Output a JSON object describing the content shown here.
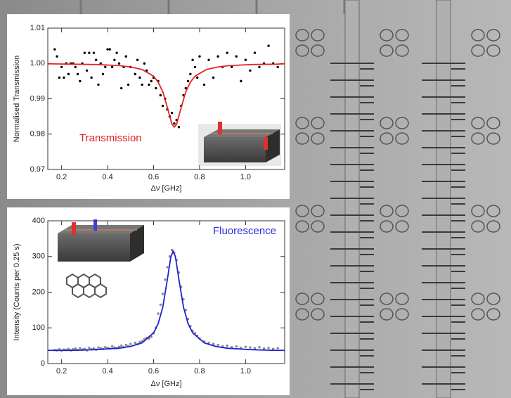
{
  "chart_data": [
    {
      "type": "scatter",
      "annotation": "Transmission",
      "annotation_color": "#e02020",
      "xlabel": "Δν [GHz]",
      "ylabel": "Normalised Transmission",
      "xlim": [
        0.14,
        1.17
      ],
      "ylim": [
        0.97,
        1.01
      ],
      "xticks": [
        0.2,
        0.4,
        0.6,
        0.8,
        {
          "value": 1,
          "label": "1.0"
        }
      ],
      "yticks": [
        0.97,
        0.98,
        0.99,
        {
          "value": 1,
          "label": "1.00"
        },
        1.01
      ],
      "points": {
        "color": "#000000",
        "x": [
          0.17,
          0.18,
          0.19,
          0.2,
          0.21,
          0.22,
          0.23,
          0.24,
          0.25,
          0.26,
          0.27,
          0.28,
          0.29,
          0.3,
          0.31,
          0.32,
          0.33,
          0.34,
          0.35,
          0.36,
          0.37,
          0.38,
          0.39,
          0.4,
          0.41,
          0.42,
          0.43,
          0.44,
          0.45,
          0.46,
          0.47,
          0.48,
          0.49,
          0.5,
          0.52,
          0.53,
          0.54,
          0.55,
          0.56,
          0.57,
          0.58,
          0.59,
          0.6,
          0.61,
          0.62,
          0.63,
          0.64,
          0.65,
          0.66,
          0.67,
          0.68,
          0.69,
          0.7,
          0.71,
          0.72,
          0.73,
          0.74,
          0.75,
          0.76,
          0.77,
          0.78,
          0.79,
          0.8,
          0.82,
          0.84,
          0.86,
          0.88,
          0.9,
          0.92,
          0.94,
          0.96,
          0.98,
          1.0,
          1.02,
          1.04,
          1.06,
          1.08,
          1.1,
          1.12,
          1.14
        ],
        "values": [
          1.004,
          1.002,
          0.996,
          0.999,
          0.996,
          1.0,
          0.997,
          1.0,
          1.0,
          0.999,
          0.997,
          0.995,
          1.0,
          1.003,
          0.998,
          1.003,
          0.996,
          1.003,
          1.001,
          0.994,
          1.0,
          0.997,
          0.999,
          1.004,
          1.004,
          0.999,
          1.001,
          1.003,
          1.0,
          0.993,
          0.999,
          1.002,
          0.994,
          0.999,
          0.997,
          1.001,
          0.996,
          0.994,
          1.0,
          0.998,
          0.994,
          0.995,
          0.996,
          0.993,
          0.995,
          0.991,
          0.988,
          0.99,
          0.987,
          0.985,
          0.986,
          0.983,
          0.984,
          0.982,
          0.988,
          0.991,
          0.993,
          0.995,
          0.997,
          1.001,
          0.999,
          0.996,
          1.002,
          0.994,
          1.001,
          0.996,
          1.002,
          0.999,
          1.003,
          0.999,
          1.002,
          0.995,
          1.001,
          0.998,
          1.003,
          0.999,
          1.0,
          1.005,
          1.0,
          0.999
        ]
      },
      "fit": {
        "color": "#e82020",
        "x": [
          0.14,
          0.25,
          0.35,
          0.45,
          0.5,
          0.55,
          0.6,
          0.62,
          0.64,
          0.66,
          0.68,
          0.69,
          0.7,
          0.72,
          0.74,
          0.76,
          0.78,
          0.83,
          0.88,
          0.93,
          1.03,
          1.13,
          1.17
        ],
        "values": [
          0.9999,
          0.9998,
          0.9997,
          0.9994,
          0.999,
          0.9983,
          0.9964,
          0.9947,
          0.992,
          0.9875,
          0.9828,
          0.982,
          0.9828,
          0.9875,
          0.992,
          0.9947,
          0.9964,
          0.9983,
          0.999,
          0.9994,
          0.9997,
          0.9998,
          0.9999
        ]
      }
    },
    {
      "type": "scatter",
      "annotation": "Fluorescence",
      "annotation_color": "#2a2ae0",
      "xlabel": "Δν [GHz]",
      "ylabel": "Intensity (Counts per 0.25 s)",
      "xlim": [
        0.14,
        1.17
      ],
      "ylim": [
        0,
        400
      ],
      "xticks": [
        0.2,
        0.4,
        0.6,
        0.8,
        {
          "value": 1,
          "label": "1.0"
        }
      ],
      "yticks": [
        0,
        100,
        200,
        300,
        400
      ],
      "points": {
        "color": "#888888",
        "x": [
          0.17,
          0.18,
          0.19,
          0.2,
          0.21,
          0.22,
          0.23,
          0.24,
          0.25,
          0.26,
          0.27,
          0.28,
          0.29,
          0.3,
          0.31,
          0.32,
          0.33,
          0.34,
          0.35,
          0.36,
          0.37,
          0.38,
          0.39,
          0.4,
          0.41,
          0.42,
          0.43,
          0.44,
          0.45,
          0.46,
          0.47,
          0.48,
          0.49,
          0.5,
          0.52,
          0.53,
          0.54,
          0.55,
          0.56,
          0.57,
          0.58,
          0.59,
          0.6,
          0.61,
          0.62,
          0.63,
          0.64,
          0.65,
          0.66,
          0.67,
          0.68,
          0.69,
          0.7,
          0.71,
          0.72,
          0.73,
          0.74,
          0.75,
          0.76,
          0.77,
          0.78,
          0.79,
          0.8,
          0.82,
          0.84,
          0.86,
          0.88,
          0.9,
          0.92,
          0.94,
          0.96,
          0.98,
          1.0,
          1.02,
          1.04,
          1.06,
          1.08,
          1.1,
          1.12,
          1.14
        ],
        "values": [
          38,
          37,
          40,
          36,
          39,
          38,
          41,
          37,
          40,
          42,
          38,
          43,
          39,
          41,
          37,
          44,
          40,
          42,
          39,
          45,
          43,
          41,
          46,
          44,
          42,
          48,
          45,
          43,
          47,
          50,
          46,
          52,
          49,
          55,
          58,
          54,
          60,
          63,
          68,
          72,
          70,
          75,
          85,
          100,
          140,
          165,
          195,
          235,
          270,
          300,
          318,
          310,
          290,
          255,
          215,
          180,
          150,
          125,
          105,
          92,
          85,
          78,
          70,
          62,
          58,
          55,
          52,
          48,
          50,
          46,
          48,
          44,
          47,
          45,
          43,
          46,
          42,
          44,
          41,
          43
        ]
      },
      "fit": {
        "color": "#2020d0",
        "x": [
          0.14,
          0.25,
          0.35,
          0.45,
          0.5,
          0.55,
          0.6,
          0.62,
          0.64,
          0.66,
          0.675,
          0.685,
          0.695,
          0.71,
          0.73,
          0.75,
          0.77,
          0.82,
          0.87,
          0.92,
          1.02,
          1.12,
          1.17
        ],
        "values": [
          37,
          37,
          39,
          43,
          48,
          58,
          86,
          112,
          158,
          236,
          299,
          315,
          299,
          236,
          158,
          112,
          86,
          58,
          48,
          43,
          39,
          37,
          37
        ]
      }
    }
  ]
}
